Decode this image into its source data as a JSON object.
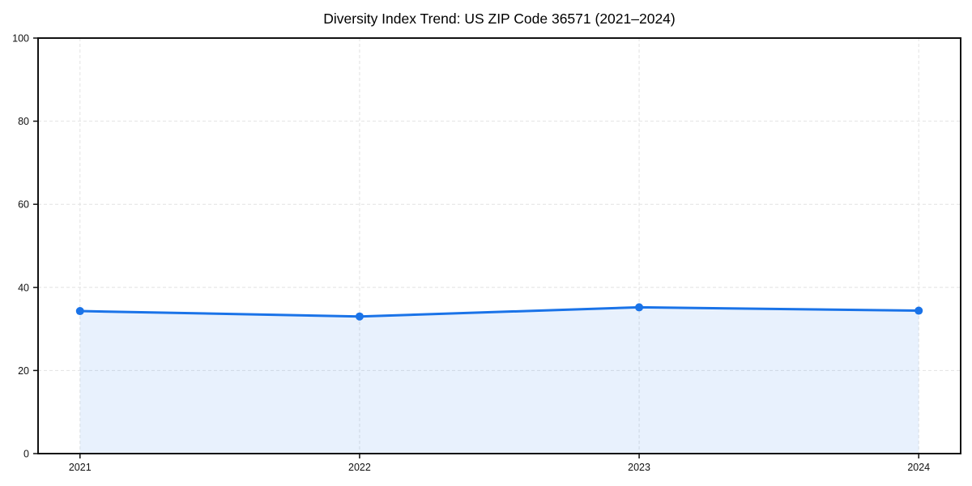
{
  "chart_data": {
    "type": "line",
    "title": "Diversity Index Trend: US ZIP Code 36571 (2021–2024)",
    "xlabel": "",
    "ylabel": "",
    "x": [
      2021,
      2022,
      2023,
      2024
    ],
    "series": [
      {
        "name": "Diversity Index",
        "values": [
          34.3,
          33.0,
          35.2,
          34.4
        ]
      }
    ],
    "xticks": [
      2021,
      2022,
      2023,
      2024
    ],
    "xtick_labels": [
      "2021",
      "2022",
      "2023",
      "2024"
    ],
    "yticks": [
      0,
      20,
      40,
      60,
      80,
      100
    ],
    "ytick_labels": [
      "0",
      "20",
      "40",
      "60",
      "80",
      "100"
    ],
    "xlim": [
      2020.85,
      2024.15
    ],
    "ylim": [
      0,
      100
    ],
    "grid": true,
    "grid_style": "dashed",
    "legend_position": "none",
    "area_fill": true,
    "marker": "circle",
    "colors": {
      "line": "#1a73e8",
      "marker": "#1a73e8",
      "area_fill": "rgba(26,115,232,0.10)",
      "grid": "#e2e2e2",
      "spine": "#111111",
      "background": "#ffffff"
    }
  }
}
